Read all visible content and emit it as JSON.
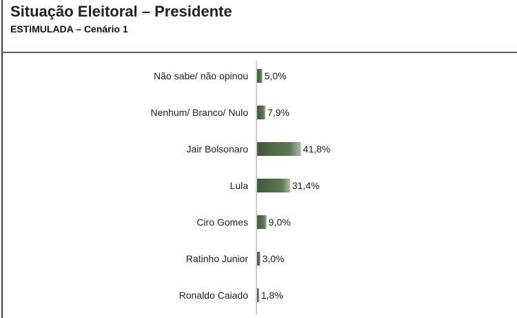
{
  "header": {
    "title": "Situação Eleitoral – Presidente",
    "subtitle": "ESTIMULADA – Cenário 1"
  },
  "chart_data": {
    "type": "bar",
    "orientation": "horizontal",
    "title": "Situação Eleitoral – Presidente",
    "subtitle": "ESTIMULADA – Cenário 1",
    "categories": [
      "Não sabe/ não opinou",
      "Nenhum/ Branco/ Nulo",
      "Jair Bolsonaro",
      "Lula",
      "Ciro Gomes",
      "Ratinho Junior",
      "Ronaldo Caiado"
    ],
    "values": [
      5.0,
      7.9,
      41.8,
      31.4,
      9.0,
      3.0,
      1.8
    ],
    "value_labels": [
      "5,0%",
      "7,9%",
      "41,8%",
      "31,4%",
      "9,0%",
      "3,0%",
      "1,8%"
    ],
    "xlabel": "",
    "ylabel": "",
    "grid": false,
    "legend": "none",
    "bar_color": "#4f6b47"
  }
}
